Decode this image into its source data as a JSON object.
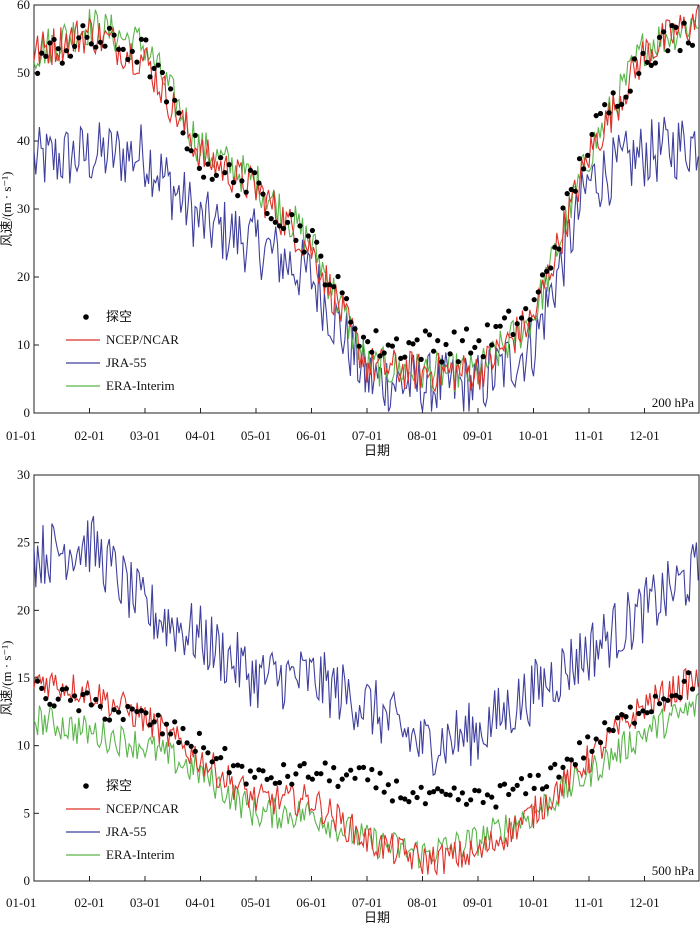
{
  "chart_data": [
    {
      "type": "line",
      "annotation": "200 hPa",
      "xlabel": "日期",
      "ylabel": "风速/(m · s⁻¹)",
      "ylim": [
        0,
        60
      ],
      "yticks": [
        "0",
        "10",
        "20",
        "30",
        "40",
        "50",
        "60"
      ],
      "x_tick_labels": [
        "01-01",
        "02-01",
        "03-01",
        "04-01",
        "05-01",
        "06-01",
        "07-01",
        "08-01",
        "09-01",
        "10-01",
        "11-01",
        "12-01"
      ],
      "legend": {
        "placement": "bottom-left",
        "entries": [
          "探空",
          "NCEP/NCAR",
          "JRA-55",
          "ERA-Interim"
        ]
      },
      "colors": {
        "探空": "#000000",
        "NCEP/NCAR": "#e0302a",
        "JRA-55": "#3f3f9e",
        "ERA-Interim": "#5ab54a"
      },
      "series": [
        {
          "name": "探空",
          "x_months": [
            1,
            2,
            3,
            4,
            5,
            6,
            7,
            8,
            9,
            10,
            11,
            12,
            12.99
          ],
          "values": [
            52,
            55,
            53,
            37,
            33,
            25,
            10,
            10,
            10,
            15,
            40,
            53,
            57
          ]
        },
        {
          "name": "NCEP/NCAR",
          "x_months": [
            1,
            2,
            3,
            4,
            5,
            6,
            7,
            8,
            9,
            10,
            11,
            12,
            12.99
          ],
          "values": [
            53,
            56,
            52,
            38,
            33,
            24,
            7,
            6,
            6,
            14,
            38,
            53,
            58
          ]
        },
        {
          "name": "JRA-55",
          "x_months": [
            1,
            2,
            3,
            4,
            5,
            6,
            7,
            8,
            9,
            10,
            11,
            12,
            12.99
          ],
          "values": [
            37,
            38,
            38,
            28,
            25,
            20,
            5,
            4,
            4,
            10,
            34,
            38,
            40
          ]
        },
        {
          "name": "ERA-Interim",
          "x_months": [
            1,
            2,
            3,
            4,
            5,
            6,
            7,
            8,
            9,
            10,
            11,
            12,
            12.99
          ],
          "values": [
            53,
            57,
            54,
            39,
            34,
            25,
            7,
            6,
            6,
            14,
            38,
            54,
            58
          ]
        }
      ]
    },
    {
      "type": "line",
      "annotation": "500 hPa",
      "xlabel": "日期",
      "ylabel": "风速/(m · s⁻¹)",
      "ylim": [
        0,
        30
      ],
      "yticks": [
        "0",
        "5",
        "10",
        "15",
        "20",
        "25",
        "30"
      ],
      "x_tick_labels": [
        "01-01",
        "02-01",
        "03-01",
        "04-01",
        "05-01",
        "06-01",
        "07-01",
        "08-01",
        "09-01",
        "10-01",
        "11-01",
        "12-01"
      ],
      "legend": {
        "placement": "bottom-left",
        "entries": [
          "探空",
          "NCEP/NCAR",
          "JRA-55",
          "ERA-Interim"
        ]
      },
      "colors": {
        "探空": "#000000",
        "NCEP/NCAR": "#e0302a",
        "JRA-55": "#3f3f9e",
        "ERA-Interim": "#5ab54a"
      },
      "series": [
        {
          "name": "探空",
          "x_months": [
            1,
            2,
            3,
            4,
            5,
            6,
            7,
            8,
            9,
            10,
            11,
            12,
            12.99
          ],
          "values": [
            14,
            13,
            12,
            10,
            7.5,
            8,
            7.5,
            6,
            6,
            7,
            10,
            13,
            15
          ]
        },
        {
          "name": "NCEP/NCAR",
          "x_months": [
            1,
            2,
            3,
            4,
            5,
            6,
            7,
            8,
            9,
            10,
            11,
            12,
            12.99
          ],
          "values": [
            15,
            14,
            12,
            9,
            6,
            6,
            3,
            1.5,
            2,
            5,
            9,
            13,
            15
          ]
        },
        {
          "name": "JRA-55",
          "x_months": [
            1,
            2,
            3,
            4,
            5,
            6,
            7,
            8,
            9,
            10,
            11,
            12,
            12.99
          ],
          "values": [
            24,
            25,
            20,
            18,
            15,
            15,
            13,
            10,
            11,
            14,
            17,
            20,
            23
          ]
        },
        {
          "name": "ERA-Interim",
          "x_months": [
            1,
            2,
            3,
            4,
            5,
            6,
            7,
            8,
            9,
            10,
            11,
            12,
            12.99
          ],
          "values": [
            12,
            11,
            10,
            8,
            5,
            5,
            3,
            2,
            3,
            5,
            8,
            11,
            13
          ]
        }
      ]
    }
  ]
}
